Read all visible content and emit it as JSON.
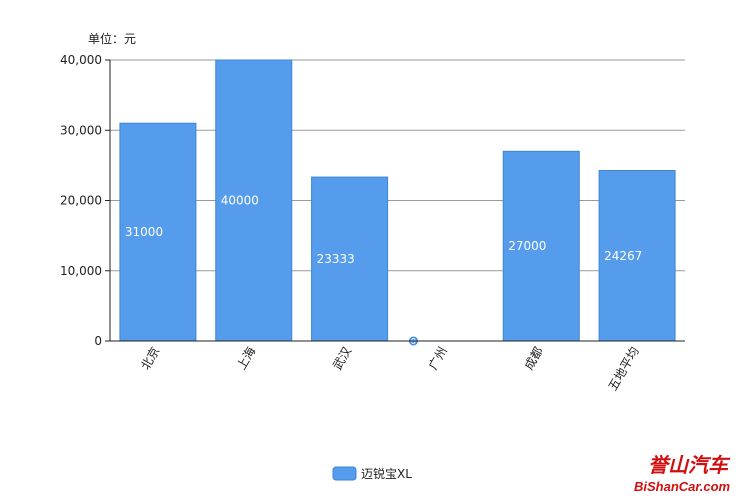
{
  "chart_data": {
    "type": "bar",
    "categories": [
      "北京",
      "上海",
      "武汉",
      "广州",
      "成都",
      "五地平均"
    ],
    "series": [
      {
        "name": "迈锐宝XL",
        "values": [
          31000,
          40000,
          23333,
          0,
          27000,
          24267
        ]
      }
    ],
    "data_labels": [
      "31000",
      "40000",
      "23333",
      "0",
      "27000",
      "24267"
    ],
    "ylim": [
      0,
      40000
    ],
    "yticks": [
      0,
      10000,
      20000,
      30000,
      40000
    ],
    "ytick_labels": [
      "0",
      "10,000",
      "20,000",
      "30,000",
      "40,000"
    ],
    "unit_label": "单位：元",
    "grid": true,
    "legend_position": "bottom-center",
    "bar_color": "#559ced",
    "bar_edge_color": "#3d86d6"
  },
  "watermark": {
    "chinese": "誉山汽车",
    "english": "BiShanCar.com"
  }
}
